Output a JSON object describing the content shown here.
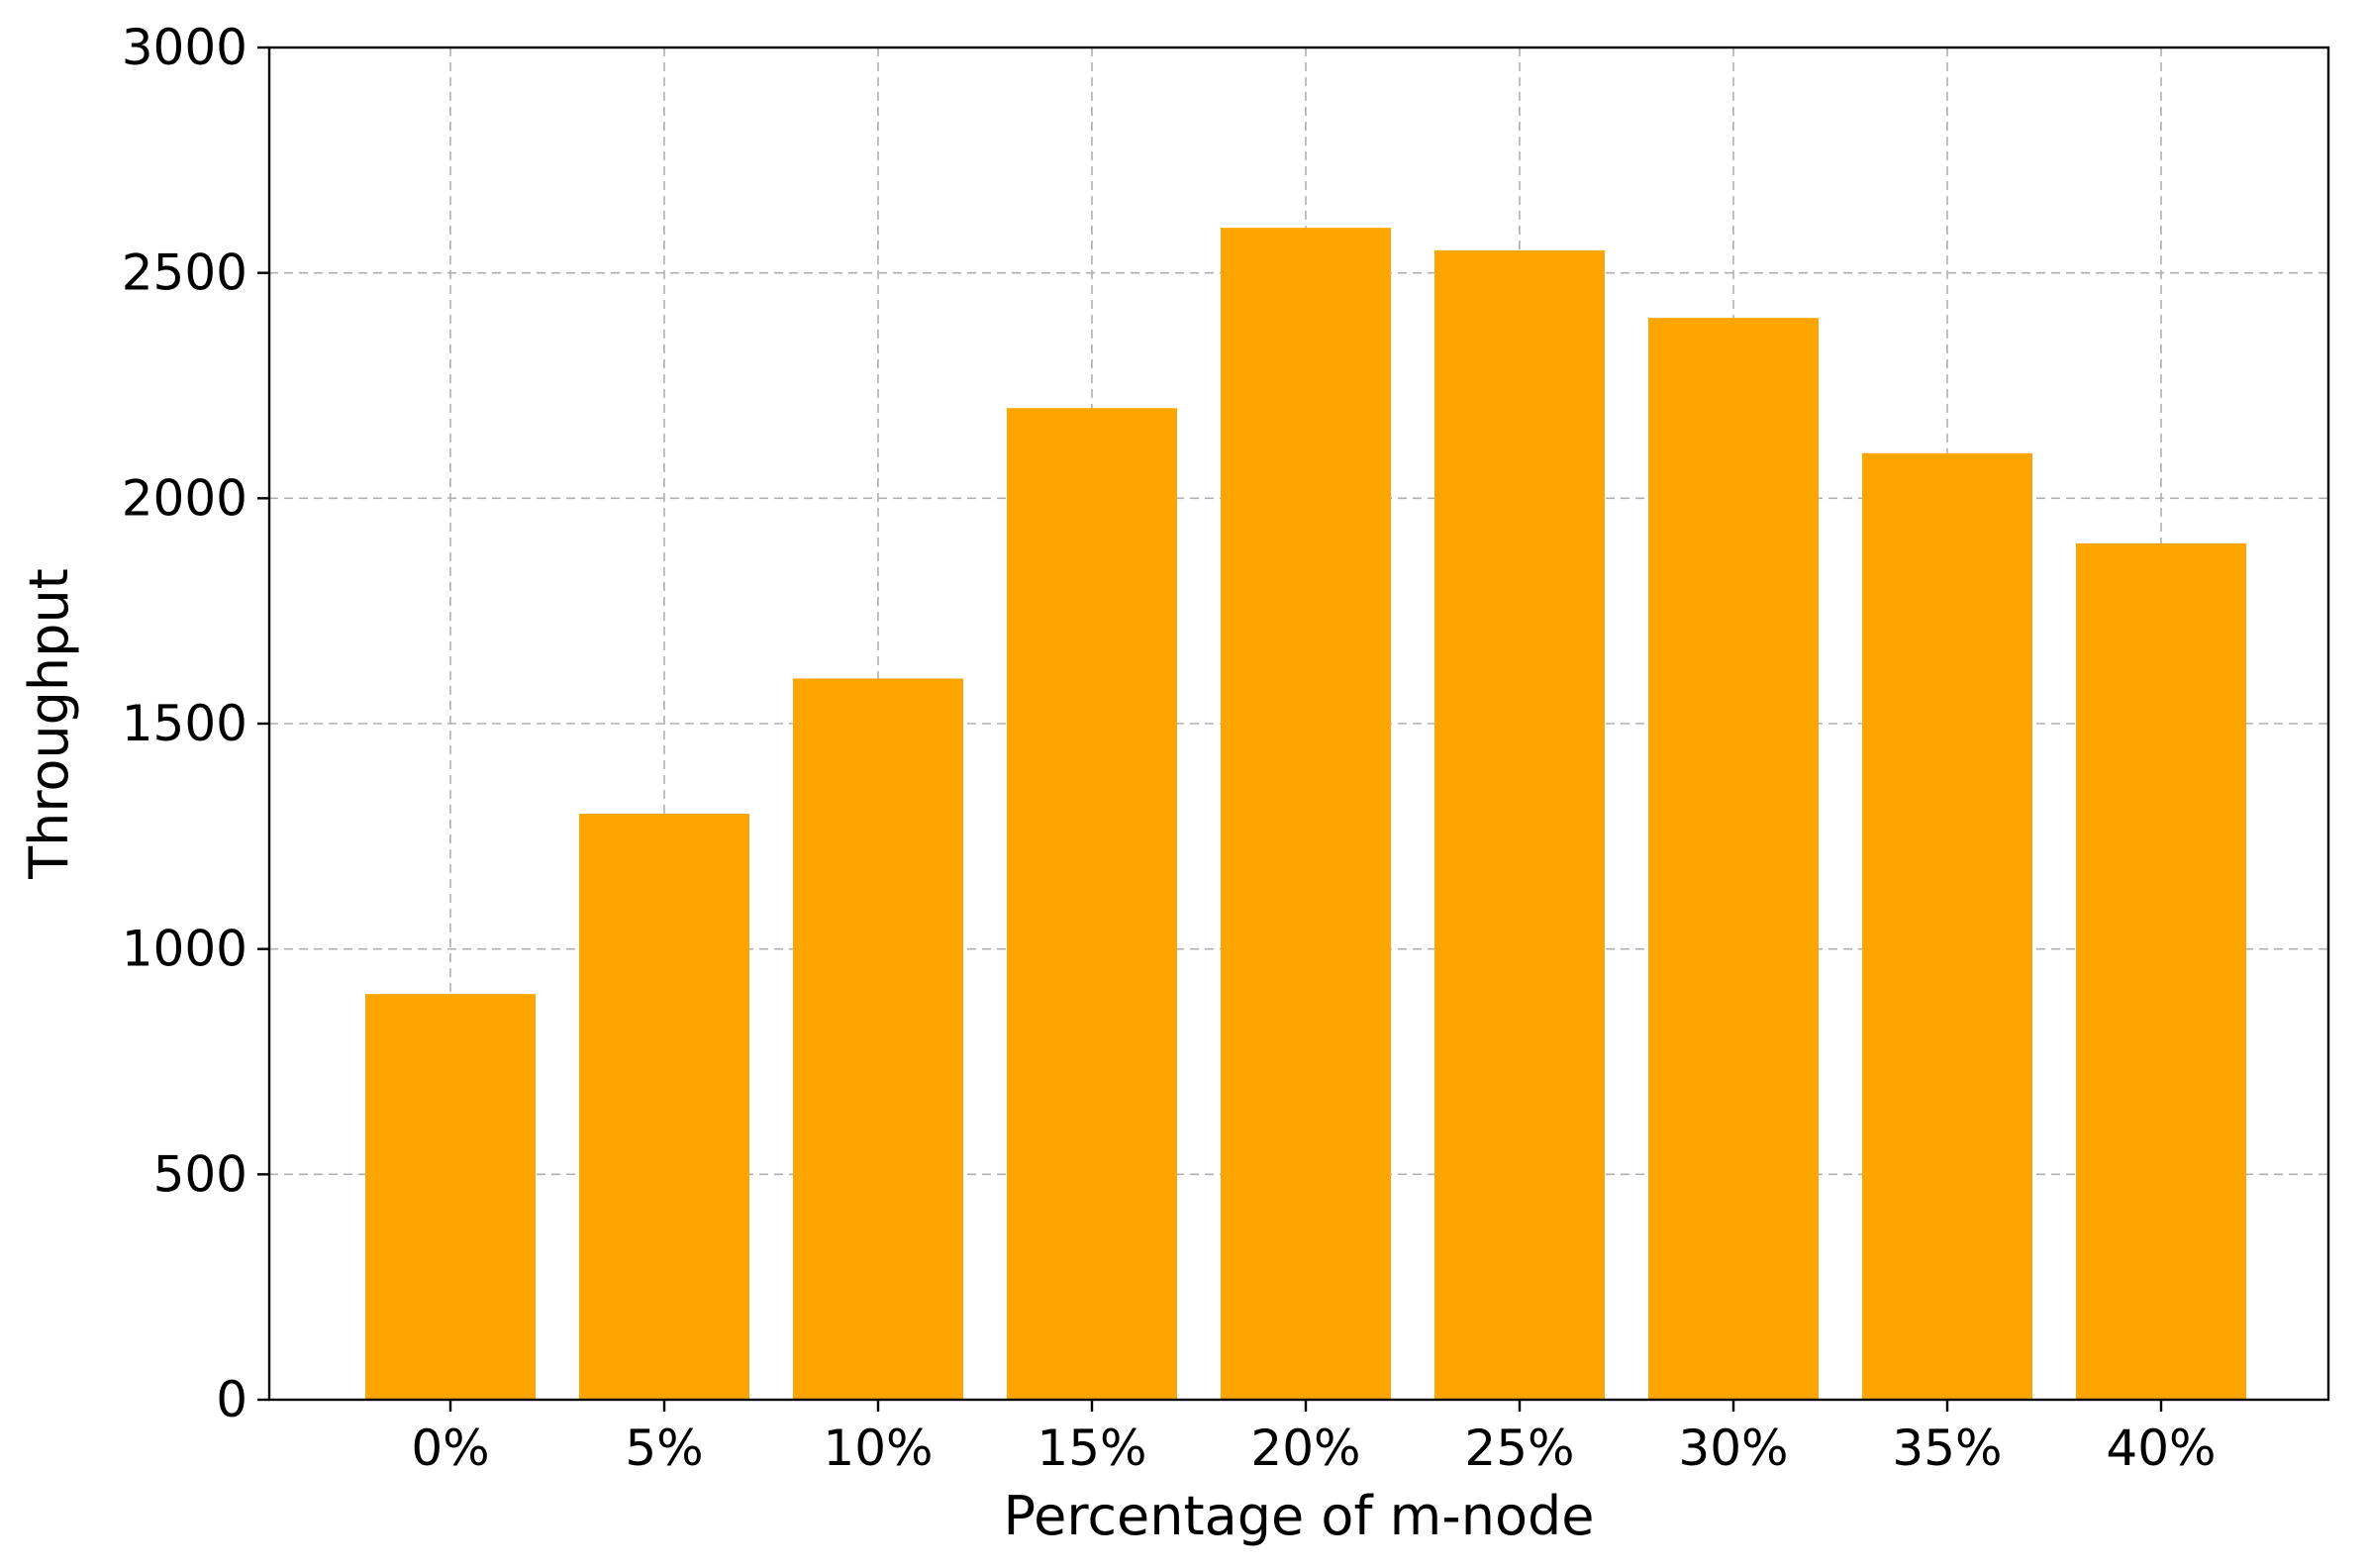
{
  "chart_data": {
    "type": "bar",
    "title": "",
    "xlabel": "Percentage of m-node",
    "ylabel": "Throughput",
    "categories": [
      "0%",
      "5%",
      "10%",
      "15%",
      "20%",
      "25%",
      "30%",
      "35%",
      "40%"
    ],
    "values": [
      900,
      1300,
      1600,
      2200,
      2600,
      2550,
      2400,
      2100,
      1900
    ],
    "ylim": [
      0,
      3000
    ],
    "yticks": [
      "0",
      "500",
      "1000",
      "1500",
      "2000",
      "2500",
      "3000"
    ],
    "grid": true,
    "legend": "none",
    "bar_color": "#FFA500"
  }
}
